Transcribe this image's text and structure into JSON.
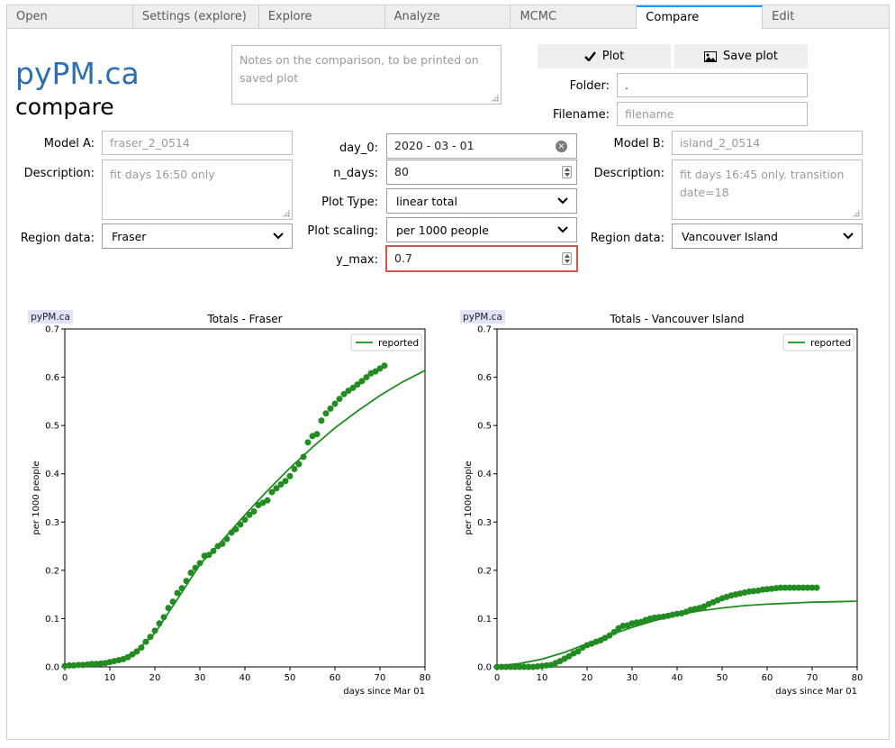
{
  "tabs": [
    "Open",
    "Settings (explore)",
    "Explore",
    "Analyze",
    "MCMC",
    "Compare",
    "Edit"
  ],
  "active_tab": 5,
  "logo": {
    "title": "pyPM.ca",
    "subtitle": "compare"
  },
  "notes": {
    "placeholder": "Notes on the comparison, to be printed on saved plot"
  },
  "buttons": {
    "plot": "Plot",
    "save_plot": "Save plot"
  },
  "folder": {
    "label": "Folder:",
    "value": "."
  },
  "filename": {
    "label": "Filename:",
    "placeholder": "filename"
  },
  "model_a": {
    "label": "Model A:",
    "value": "fraser_2_0514",
    "description_label": "Description:",
    "description": "fit days 16:50 only",
    "region_label": "Region data:",
    "region": "Fraser"
  },
  "model_b": {
    "label": "Model B:",
    "value": "island_2_0514",
    "description_label": "Description:",
    "description": "fit days 16:45 only. transition date=18",
    "region_label": "Region data:",
    "region": "Vancouver Island"
  },
  "settings": {
    "day0_label": "day_0:",
    "day0": "2020 - 03 - 01",
    "ndays_label": "n_days:",
    "ndays": "80",
    "plot_type_label": "Plot Type:",
    "plot_type": "linear total",
    "scaling_label": "Plot scaling:",
    "scaling": "per 1000 people",
    "ymax_label": "y_max:",
    "ymax": "0.7"
  },
  "accent_color": "#2196f3",
  "highlight_color": "#d9534f",
  "chart_data": [
    {
      "type": "scatter",
      "title": "Totals - Fraser",
      "badge": "pyPM.ca",
      "xlabel": "days since Mar 01",
      "ylabel": "per 1000 people",
      "xlim": [
        0,
        80
      ],
      "ylim": [
        0,
        0.7
      ],
      "xticks": [
        "0",
        "10",
        "20",
        "30",
        "40",
        "50",
        "60",
        "70",
        "80"
      ],
      "yticks": [
        "0.0",
        "0.1",
        "0.2",
        "0.3",
        "0.4",
        "0.5",
        "0.6",
        "0.7"
      ],
      "legend": {
        "label": "reported",
        "position": "top-right"
      },
      "color": "#228b22",
      "points": [
        [
          0,
          0.002
        ],
        [
          1,
          0.003
        ],
        [
          2,
          0.003
        ],
        [
          3,
          0.004
        ],
        [
          4,
          0.004
        ],
        [
          5,
          0.005
        ],
        [
          6,
          0.006
        ],
        [
          7,
          0.006
        ],
        [
          8,
          0.007
        ],
        [
          9,
          0.008
        ],
        [
          10,
          0.01
        ],
        [
          11,
          0.012
        ],
        [
          12,
          0.014
        ],
        [
          13,
          0.016
        ],
        [
          14,
          0.02
        ],
        [
          15,
          0.026
        ],
        [
          16,
          0.032
        ],
        [
          17,
          0.04
        ],
        [
          18,
          0.052
        ],
        [
          19,
          0.062
        ],
        [
          20,
          0.075
        ],
        [
          21,
          0.09
        ],
        [
          22,
          0.103
        ],
        [
          23,
          0.122
        ],
        [
          24,
          0.135
        ],
        [
          25,
          0.153
        ],
        [
          26,
          0.163
        ],
        [
          27,
          0.178
        ],
        [
          28,
          0.195
        ],
        [
          29,
          0.205
        ],
        [
          30,
          0.215
        ],
        [
          31,
          0.23
        ],
        [
          32,
          0.232
        ],
        [
          33,
          0.24
        ],
        [
          34,
          0.25
        ],
        [
          35,
          0.255
        ],
        [
          36,
          0.265
        ],
        [
          37,
          0.278
        ],
        [
          38,
          0.285
        ],
        [
          39,
          0.295
        ],
        [
          40,
          0.305
        ],
        [
          41,
          0.315
        ],
        [
          42,
          0.322
        ],
        [
          43,
          0.335
        ],
        [
          44,
          0.34
        ],
        [
          45,
          0.345
        ],
        [
          46,
          0.362
        ],
        [
          47,
          0.37
        ],
        [
          48,
          0.378
        ],
        [
          49,
          0.385
        ],
        [
          50,
          0.395
        ],
        [
          51,
          0.41
        ],
        [
          52,
          0.42
        ],
        [
          53,
          0.435
        ],
        [
          54,
          0.465
        ],
        [
          55,
          0.478
        ],
        [
          56,
          0.482
        ],
        [
          57,
          0.51
        ],
        [
          58,
          0.525
        ],
        [
          59,
          0.535
        ],
        [
          60,
          0.545
        ],
        [
          61,
          0.555
        ],
        [
          62,
          0.565
        ],
        [
          63,
          0.572
        ],
        [
          64,
          0.578
        ],
        [
          65,
          0.585
        ],
        [
          66,
          0.592
        ],
        [
          67,
          0.6
        ],
        [
          68,
          0.608
        ],
        [
          69,
          0.612
        ],
        [
          70,
          0.618
        ],
        [
          71,
          0.624
        ]
      ],
      "curve": [
        [
          0,
          0.001
        ],
        [
          5,
          0.002
        ],
        [
          10,
          0.007
        ],
        [
          15,
          0.025
        ],
        [
          20,
          0.07
        ],
        [
          25,
          0.14
        ],
        [
          30,
          0.212
        ],
        [
          35,
          0.262
        ],
        [
          40,
          0.315
        ],
        [
          45,
          0.365
        ],
        [
          50,
          0.412
        ],
        [
          55,
          0.455
        ],
        [
          60,
          0.495
        ],
        [
          65,
          0.53
        ],
        [
          70,
          0.562
        ],
        [
          75,
          0.59
        ],
        [
          80,
          0.614
        ]
      ]
    },
    {
      "type": "scatter",
      "title": "Totals - Vancouver Island",
      "badge": "pyPM.ca",
      "xlabel": "days since Mar 01",
      "ylabel": "per 1000 people",
      "xlim": [
        0,
        80
      ],
      "ylim": [
        0,
        0.7
      ],
      "xticks": [
        "0",
        "10",
        "20",
        "30",
        "40",
        "50",
        "60",
        "70",
        "80"
      ],
      "yticks": [
        "0.0",
        "0.1",
        "0.2",
        "0.3",
        "0.4",
        "0.5",
        "0.6",
        "0.7"
      ],
      "legend": {
        "label": "reported",
        "position": "top-right"
      },
      "color": "#228b22",
      "points": [
        [
          0,
          0.0
        ],
        [
          1,
          0.0
        ],
        [
          2,
          0.0
        ],
        [
          3,
          0.0
        ],
        [
          4,
          0.0
        ],
        [
          5,
          0.0
        ],
        [
          6,
          0.0
        ],
        [
          7,
          0.0
        ],
        [
          8,
          0.0
        ],
        [
          9,
          0.001
        ],
        [
          10,
          0.002
        ],
        [
          11,
          0.003
        ],
        [
          12,
          0.004
        ],
        [
          13,
          0.008
        ],
        [
          14,
          0.012
        ],
        [
          15,
          0.017
        ],
        [
          16,
          0.022
        ],
        [
          17,
          0.028
        ],
        [
          18,
          0.032
        ],
        [
          19,
          0.04
        ],
        [
          20,
          0.045
        ],
        [
          21,
          0.048
        ],
        [
          22,
          0.052
        ],
        [
          23,
          0.055
        ],
        [
          24,
          0.06
        ],
        [
          25,
          0.065
        ],
        [
          26,
          0.072
        ],
        [
          27,
          0.08
        ],
        [
          28,
          0.085
        ],
        [
          29,
          0.086
        ],
        [
          30,
          0.09
        ],
        [
          31,
          0.092
        ],
        [
          32,
          0.093
        ],
        [
          33,
          0.097
        ],
        [
          34,
          0.1
        ],
        [
          35,
          0.102
        ],
        [
          36,
          0.103
        ],
        [
          37,
          0.104
        ],
        [
          38,
          0.106
        ],
        [
          39,
          0.108
        ],
        [
          40,
          0.11
        ],
        [
          41,
          0.111
        ],
        [
          42,
          0.114
        ],
        [
          43,
          0.118
        ],
        [
          44,
          0.12
        ],
        [
          45,
          0.122
        ],
        [
          46,
          0.125
        ],
        [
          47,
          0.13
        ],
        [
          48,
          0.134
        ],
        [
          49,
          0.138
        ],
        [
          50,
          0.142
        ],
        [
          51,
          0.145
        ],
        [
          52,
          0.148
        ],
        [
          53,
          0.15
        ],
        [
          54,
          0.152
        ],
        [
          55,
          0.154
        ],
        [
          56,
          0.156
        ],
        [
          57,
          0.157
        ],
        [
          58,
          0.158
        ],
        [
          59,
          0.16
        ],
        [
          60,
          0.161
        ],
        [
          61,
          0.162
        ],
        [
          62,
          0.163
        ],
        [
          63,
          0.164
        ],
        [
          64,
          0.164
        ],
        [
          65,
          0.164
        ],
        [
          66,
          0.164
        ],
        [
          67,
          0.164
        ],
        [
          68,
          0.164
        ],
        [
          69,
          0.164
        ],
        [
          70,
          0.164
        ],
        [
          71,
          0.164
        ]
      ],
      "curve": [
        [
          0,
          0.002
        ],
        [
          5,
          0.007
        ],
        [
          10,
          0.016
        ],
        [
          15,
          0.03
        ],
        [
          20,
          0.048
        ],
        [
          25,
          0.066
        ],
        [
          30,
          0.082
        ],
        [
          35,
          0.096
        ],
        [
          40,
          0.108
        ],
        [
          45,
          0.116
        ],
        [
          50,
          0.122
        ],
        [
          55,
          0.127
        ],
        [
          60,
          0.13
        ],
        [
          65,
          0.132
        ],
        [
          70,
          0.134
        ],
        [
          75,
          0.135
        ],
        [
          80,
          0.136
        ]
      ]
    }
  ]
}
